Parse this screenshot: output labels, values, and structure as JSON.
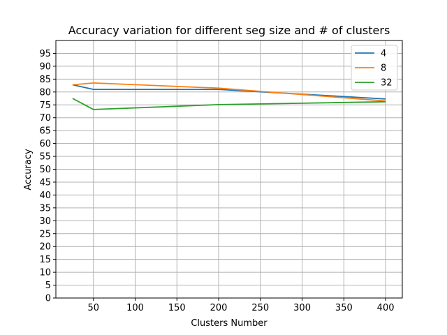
{
  "chart_data": {
    "type": "line",
    "title": "Accuracy variation for different seg size and # of clusters",
    "xlabel": "Clusters Number",
    "ylabel": "Accuracy",
    "xlim": [
      5,
      420
    ],
    "ylim": [
      0,
      100
    ],
    "xticks": [
      50,
      100,
      150,
      200,
      250,
      300,
      350,
      400
    ],
    "yticks": [
      0,
      5,
      10,
      15,
      20,
      25,
      30,
      35,
      40,
      45,
      50,
      55,
      60,
      65,
      70,
      75,
      80,
      85,
      90,
      95
    ],
    "grid": true,
    "legend_position": "top-right",
    "x": [
      25,
      50,
      200,
      400
    ],
    "series": [
      {
        "name": "4",
        "color": "#1f77b4",
        "values": [
          82.8,
          81.0,
          81.0,
          77.3
        ]
      },
      {
        "name": "8",
        "color": "#ff7f0e",
        "values": [
          82.8,
          83.5,
          81.5,
          76.5
        ]
      },
      {
        "name": "32",
        "color": "#2ca02c",
        "values": [
          77.5,
          73.2,
          75.1,
          76.2
        ]
      }
    ]
  }
}
